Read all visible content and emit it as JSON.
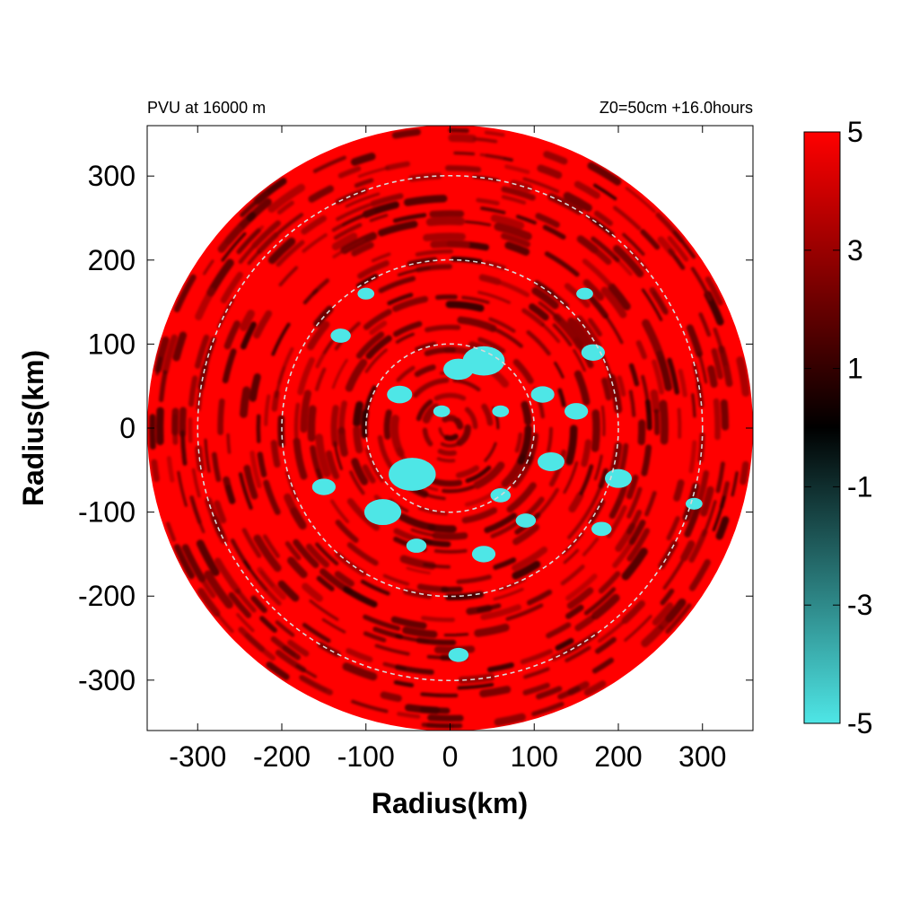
{
  "chart_data": {
    "type": "heatmap",
    "title": "PVU at 16000 m",
    "subtitle": "Z0=50cm  +16.0hours",
    "xlabel": "Radius(km)",
    "ylabel": "Radius(km)",
    "xlim": [
      -360,
      360
    ],
    "ylim": [
      -360,
      360
    ],
    "x_ticks": [
      -300,
      -200,
      -100,
      0,
      100,
      200,
      300
    ],
    "y_ticks": [
      300,
      200,
      100,
      0,
      -100,
      -200,
      -300
    ],
    "domain_radius_km": 360,
    "reference_circles_km": [
      100,
      200,
      300
    ],
    "colorbar": {
      "min": -5,
      "max": 5,
      "ticks": [
        5,
        3,
        1,
        -1,
        -3,
        -5
      ],
      "colors": {
        "low": "#4ee6e6",
        "mid": "#000000",
        "high": "#ff0000"
      }
    },
    "cyan_patches": [
      {
        "x": -45,
        "y": -55,
        "r": 28
      },
      {
        "x": 40,
        "y": 80,
        "r": 25
      },
      {
        "x": 10,
        "y": 70,
        "r": 18
      },
      {
        "x": -80,
        "y": -100,
        "r": 22
      },
      {
        "x": -60,
        "y": 40,
        "r": 15
      },
      {
        "x": 110,
        "y": 40,
        "r": 14
      },
      {
        "x": 120,
        "y": -40,
        "r": 16
      },
      {
        "x": 150,
        "y": 20,
        "r": 14
      },
      {
        "x": 170,
        "y": 90,
        "r": 14
      },
      {
        "x": 200,
        "y": -60,
        "r": 16
      },
      {
        "x": -150,
        "y": -70,
        "r": 14
      },
      {
        "x": -130,
        "y": 110,
        "r": 12
      },
      {
        "x": 40,
        "y": -150,
        "r": 14
      },
      {
        "x": -40,
        "y": -140,
        "r": 12
      },
      {
        "x": 60,
        "y": -80,
        "r": 12
      },
      {
        "x": 180,
        "y": -120,
        "r": 12
      },
      {
        "x": 90,
        "y": -110,
        "r": 12
      },
      {
        "x": -100,
        "y": 160,
        "r": 10
      },
      {
        "x": 160,
        "y": 160,
        "r": 10
      },
      {
        "x": -10,
        "y": 20,
        "r": 10
      },
      {
        "x": 60,
        "y": 20,
        "r": 10
      },
      {
        "x": 10,
        "y": -270,
        "r": 12
      },
      {
        "x": 290,
        "y": -90,
        "r": 10
      }
    ]
  }
}
